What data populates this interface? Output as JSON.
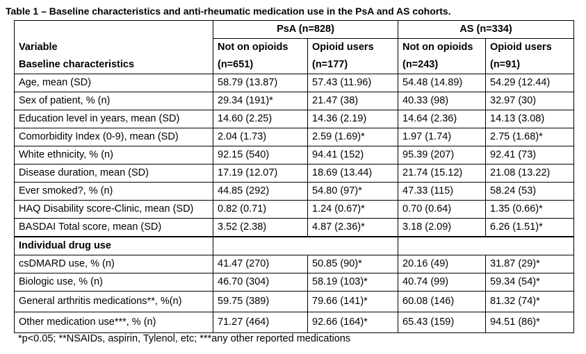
{
  "caption": "Table 1 – Baseline characteristics and anti-rheumatic medication use in the PsA and AS cohorts.",
  "groups": [
    "PsA (n=828)",
    "AS (n=334)"
  ],
  "header": {
    "line1": [
      "Variable",
      "Not on opioids",
      "Opioid users",
      "Not on opioids",
      "Opioid users"
    ],
    "line2": [
      "Baseline characteristics",
      "(n=651)",
      "(n=177)",
      "(n=243)",
      "(n=91)"
    ]
  },
  "baseline_rows": [
    {
      "label": "Age, mean (SD)",
      "values": [
        "58.79 (13.87)",
        "57.43 (11.96)",
        "54.48 (14.89)",
        "54.29 (12.44)"
      ]
    },
    {
      "label": "Sex of patient, % (n)",
      "values": [
        "29.34 (191)*",
        "21.47 (38)",
        "40.33 (98)",
        "32.97 (30)"
      ]
    },
    {
      "label": "Education level in years, mean (SD)",
      "values": [
        "14.60 (2.25)",
        "14.36 (2.19)",
        "14.64 (2.36)",
        "14.13 (3.08)"
      ]
    },
    {
      "label": "Comorbidity Index (0-9), mean (SD)",
      "values": [
        "2.04 (1.73)",
        "2.59 (1.69)*",
        "1.97 (1.74)",
        "2.75 (1.68)*"
      ]
    },
    {
      "label": "White ethnicity, % (n)",
      "values": [
        "92.15 (540)",
        "94.41 (152)",
        "95.39 (207)",
        "92.41 (73)"
      ]
    },
    {
      "label": "Disease duration, mean (SD)",
      "values": [
        "17.19 (12.07)",
        "18.69 (13.44)",
        "21.74 (15.12)",
        "21.08 (13.22)"
      ]
    },
    {
      "label": "Ever smoked?, % (n)",
      "values": [
        "44.85 (292)",
        "54.80 (97)*",
        "47.33 (115)",
        "58.24 (53)"
      ]
    },
    {
      "label": "HAQ Disability score-Clinic, mean (SD)",
      "values": [
        "0.82 (0.71)",
        "1.24 (0.67)*",
        "0.70 (0.64)",
        "1.35 (0.66)*"
      ]
    },
    {
      "label": "BASDAI Total score, mean (SD)",
      "values": [
        "3.52 (2.38)",
        "4.87 (2.36)*",
        "3.18 (2.09)",
        "6.26 (1.51)*"
      ]
    }
  ],
  "section_label": "Individual drug use",
  "drug_rows": [
    {
      "label": "csDMARD use, % (n)",
      "values": [
        "41.47 (270)",
        "50.85 (90)*",
        "20.16 (49)",
        "31.87 (29)*"
      ]
    },
    {
      "label": "Biologic use, % (n)",
      "values": [
        "46.70 (304)",
        "58.19 (103)*",
        "40.74 (99)",
        "59.34 (54)*"
      ]
    },
    {
      "label": "General arthritis medications**, %(n)",
      "values": [
        "59.75 (389)",
        "79.66 (141)*",
        "60.08 (146)",
        "81.32 (74)*"
      ]
    },
    {
      "label": "Other medication use***, % (n)",
      "values": [
        "71.27 (464)",
        "92.66 (164)*",
        "65.43 (159)",
        "94.51 (86)*"
      ]
    }
  ],
  "footnote": "*p<0.05; **NSAIDs, aspirin, Tylenol, etc; ***any other reported medications"
}
